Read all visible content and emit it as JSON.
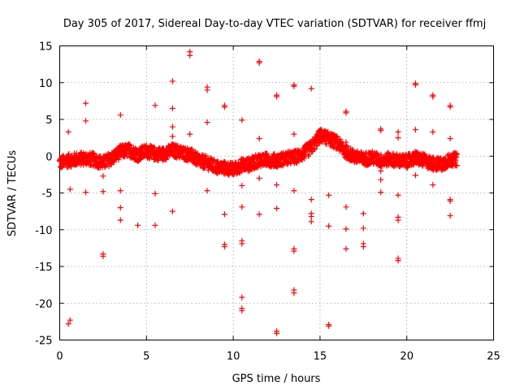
{
  "chart_data": {
    "type": "scatter",
    "title": "Day 305 of 2017, Sidereal Day-to-day VTEC variation (SDTVAR) for receiver ffmj",
    "xlabel": "GPS time / hours",
    "ylabel": "SDTVAR / TECUs",
    "xlim": [
      0,
      25
    ],
    "ylim": [
      -25,
      15
    ],
    "xticks": [
      0,
      5,
      10,
      15,
      20,
      25
    ],
    "yticks": [
      -25,
      -20,
      -15,
      -10,
      -5,
      0,
      5,
      10,
      15
    ],
    "grid": true,
    "marker": "+",
    "color": "#ff0000",
    "band": [
      [
        0.0,
        -0.9
      ],
      [
        0.5,
        -0.6
      ],
      [
        1.0,
        -0.4
      ],
      [
        1.5,
        -0.3
      ],
      [
        2.0,
        -0.5
      ],
      [
        2.5,
        -0.9
      ],
      [
        3.0,
        -0.3
      ],
      [
        3.5,
        0.6
      ],
      [
        4.0,
        0.8
      ],
      [
        4.5,
        0.2
      ],
      [
        5.0,
        0.7
      ],
      [
        5.5,
        0.3
      ],
      [
        6.0,
        0.3
      ],
      [
        6.5,
        0.8
      ],
      [
        7.0,
        0.5
      ],
      [
        7.5,
        0.2
      ],
      [
        8.0,
        -0.6
      ],
      [
        8.5,
        -0.9
      ],
      [
        9.0,
        -1.5
      ],
      [
        9.5,
        -1.6
      ],
      [
        10.0,
        -1.8
      ],
      [
        10.5,
        -1.2
      ],
      [
        11.0,
        -1.1
      ],
      [
        11.5,
        -0.5
      ],
      [
        12.0,
        -0.5
      ],
      [
        12.5,
        -0.6
      ],
      [
        13.0,
        -0.3
      ],
      [
        13.5,
        -0.2
      ],
      [
        14.0,
        0.3
      ],
      [
        14.5,
        1.2
      ],
      [
        15.0,
        2.8
      ],
      [
        15.5,
        2.4
      ],
      [
        16.0,
        1.8
      ],
      [
        16.5,
        0.6
      ],
      [
        17.0,
        -0.1
      ],
      [
        17.5,
        -0.4
      ],
      [
        18.0,
        -0.2
      ],
      [
        18.5,
        -0.6
      ],
      [
        19.0,
        -0.4
      ],
      [
        19.5,
        -0.6
      ],
      [
        20.0,
        -0.7
      ],
      [
        20.5,
        -0.2
      ],
      [
        21.0,
        -0.6
      ],
      [
        21.5,
        -1.0
      ],
      [
        22.0,
        -1.1
      ],
      [
        22.5,
        -0.5
      ],
      [
        22.9,
        -0.4
      ]
    ],
    "outliers": [
      [
        0.5,
        3.3
      ],
      [
        0.6,
        -4.5
      ],
      [
        0.6,
        -22.3
      ],
      [
        0.5,
        -22.8
      ],
      [
        1.5,
        7.2
      ],
      [
        1.5,
        4.8
      ],
      [
        1.5,
        -4.9
      ],
      [
        2.5,
        -2.7
      ],
      [
        2.5,
        -4.8
      ],
      [
        2.5,
        -13.3
      ],
      [
        2.5,
        -13.6
      ],
      [
        3.5,
        5.6
      ],
      [
        3.5,
        -4.7
      ],
      [
        3.5,
        -7.0
      ],
      [
        3.5,
        -8.7
      ],
      [
        4.5,
        -9.4
      ],
      [
        5.5,
        6.9
      ],
      [
        5.5,
        -5.1
      ],
      [
        5.5,
        -9.4
      ],
      [
        6.5,
        10.2
      ],
      [
        6.5,
        6.5
      ],
      [
        6.5,
        4.0
      ],
      [
        6.5,
        2.7
      ],
      [
        6.5,
        -7.5
      ],
      [
        7.5,
        14.2
      ],
      [
        7.5,
        13.7
      ],
      [
        7.5,
        3.0
      ],
      [
        8.5,
        9.4
      ],
      [
        8.5,
        9.0
      ],
      [
        8.5,
        4.6
      ],
      [
        8.5,
        -4.7
      ],
      [
        9.5,
        6.9
      ],
      [
        9.5,
        6.7
      ],
      [
        9.5,
        -7.9
      ],
      [
        9.5,
        -12.0
      ],
      [
        9.5,
        -12.3
      ],
      [
        10.5,
        4.9
      ],
      [
        10.5,
        -4.0
      ],
      [
        10.5,
        -6.9
      ],
      [
        10.5,
        -11.5
      ],
      [
        10.5,
        -11.9
      ],
      [
        10.5,
        -19.2
      ],
      [
        10.5,
        -20.7
      ],
      [
        10.5,
        -21.0
      ],
      [
        11.5,
        12.9
      ],
      [
        11.5,
        12.7
      ],
      [
        11.5,
        2.4
      ],
      [
        11.5,
        -3.0
      ],
      [
        11.5,
        -7.9
      ],
      [
        12.5,
        8.3
      ],
      [
        12.5,
        8.1
      ],
      [
        12.5,
        -3.9
      ],
      [
        12.5,
        -7.1
      ],
      [
        12.5,
        -23.8
      ],
      [
        12.5,
        -24.1
      ],
      [
        13.5,
        9.7
      ],
      [
        13.5,
        9.5
      ],
      [
        13.5,
        3.0
      ],
      [
        13.5,
        -4.7
      ],
      [
        13.5,
        -12.6
      ],
      [
        13.5,
        -12.9
      ],
      [
        13.5,
        -18.2
      ],
      [
        13.5,
        -18.6
      ],
      [
        14.5,
        9.2
      ],
      [
        14.5,
        -5.9
      ],
      [
        14.5,
        -7.8
      ],
      [
        14.5,
        -8.2
      ],
      [
        14.5,
        -8.9
      ],
      [
        15.5,
        -5.3
      ],
      [
        15.5,
        -9.5
      ],
      [
        15.5,
        -22.9
      ],
      [
        15.5,
        -23.1
      ],
      [
        16.5,
        6.1
      ],
      [
        16.5,
        5.9
      ],
      [
        16.5,
        1.9
      ],
      [
        16.5,
        -6.9
      ],
      [
        16.5,
        -9.9
      ],
      [
        16.5,
        -12.6
      ],
      [
        17.5,
        -7.8
      ],
      [
        17.5,
        -9.8
      ],
      [
        17.5,
        -11.9
      ],
      [
        17.5,
        -12.3
      ],
      [
        18.5,
        3.7
      ],
      [
        18.5,
        3.5
      ],
      [
        18.5,
        -2.0
      ],
      [
        18.5,
        -3.2
      ],
      [
        18.5,
        -4.9
      ],
      [
        19.5,
        3.3
      ],
      [
        19.5,
        2.5
      ],
      [
        19.5,
        -5.3
      ],
      [
        19.5,
        -8.3
      ],
      [
        19.5,
        -8.7
      ],
      [
        19.5,
        -13.9
      ],
      [
        19.5,
        -14.2
      ],
      [
        20.5,
        9.9
      ],
      [
        20.5,
        9.7
      ],
      [
        20.5,
        3.6
      ],
      [
        20.5,
        -2.6
      ],
      [
        21.5,
        8.3
      ],
      [
        21.5,
        8.1
      ],
      [
        21.5,
        3.3
      ],
      [
        21.5,
        -3.9
      ],
      [
        22.5,
        6.9
      ],
      [
        22.5,
        6.7
      ],
      [
        22.5,
        2.4
      ],
      [
        22.5,
        -5.9
      ],
      [
        22.5,
        -6.1
      ],
      [
        22.5,
        -8.1
      ]
    ]
  }
}
